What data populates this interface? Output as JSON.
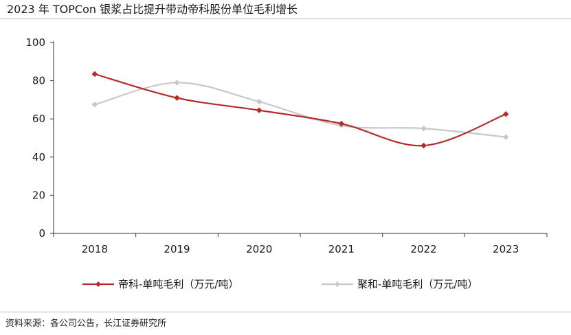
{
  "title": "2023 年 TOPCon 银浆占比提升带动帝科股份单位毛利增长",
  "source": "资料来源：各公司公告，长江证券研究所",
  "chart_data": {
    "type": "line",
    "title": "2023 年 TOPCon 银浆占比提升带动帝科股份单位毛利增长",
    "xlabel": "",
    "ylabel": "",
    "categories": [
      "2018",
      "2019",
      "2020",
      "2021",
      "2022",
      "2023"
    ],
    "ylim": [
      0,
      100
    ],
    "yticks": [
      "0",
      "20",
      "40",
      "60",
      "80",
      "100"
    ],
    "grid": false,
    "legend_position": "bottom",
    "smooth": true,
    "series": [
      {
        "name": "帝科-单吨毛利（万元/吨）",
        "values": [
          83.5,
          71,
          64.5,
          57.5,
          46,
          62.5
        ],
        "color": "#b42a26",
        "marker": "diamond"
      },
      {
        "name": "聚和-单吨毛利（万元/吨）",
        "values": [
          67.5,
          79,
          69,
          56.5,
          55,
          50.5
        ],
        "color": "#c8c8c8",
        "marker": "diamond"
      }
    ]
  }
}
